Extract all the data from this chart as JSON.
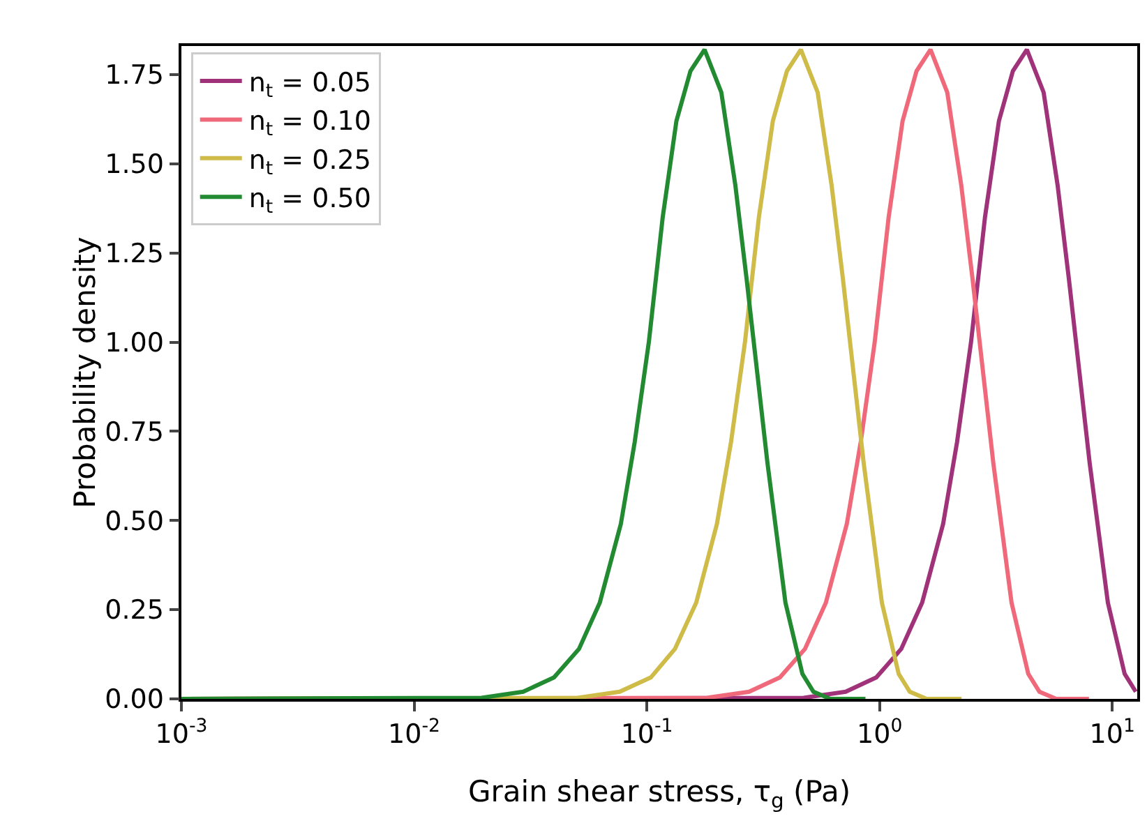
{
  "chart_data": {
    "type": "line",
    "xlabel": "Grain shear stress, τ$_{g}$ (Pa)",
    "ylabel": "Probability density",
    "log": "x",
    "grid": false,
    "legend": "top left",
    "line_style": "solid",
    "marker": "none",
    "xlim": [
      0.001,
      12.8
    ],
    "ylim": [
      0,
      1.83
    ],
    "xticks": [
      {
        "value": 0.001,
        "label": "10$^{-3}$"
      },
      {
        "value": 0.01,
        "label": "10$^{-2}$"
      },
      {
        "value": 0.1,
        "label": "10$^{-1}$"
      },
      {
        "value": 1,
        "label": "10$^{0}$"
      },
      {
        "value": 10,
        "label": "10$^{1}$"
      }
    ],
    "yticks": [
      {
        "value": 0,
        "label": "0.00"
      },
      {
        "value": 0.25,
        "label": "0.25"
      },
      {
        "value": 0.5,
        "label": "0.50"
      },
      {
        "value": 0.75,
        "label": "0.75"
      },
      {
        "value": 1,
        "label": "1.00"
      },
      {
        "value": 1.25,
        "label": "1.25"
      },
      {
        "value": 1.5,
        "label": "1.50"
      },
      {
        "value": 1.75,
        "label": "1.75"
      }
    ],
    "series": [
      {
        "name": "n$_{t}$ = 0.05",
        "color": "#a03279",
        "x": [
          0.001,
          0.472,
          0.715,
          0.968,
          1.239,
          1.524,
          1.875,
          2.153,
          2.472,
          2.838,
          3.258,
          3.741,
          4.295,
          5.07,
          5.821,
          6.501,
          7.998,
          9.572,
          11.3,
          12.62
        ],
        "values": [
          0,
          0.003,
          0.02,
          0.06,
          0.14,
          0.27,
          0.49,
          0.72,
          1.0,
          1.35,
          1.62,
          1.76,
          1.82,
          1.7,
          1.44,
          1.18,
          0.66,
          0.27,
          0.07,
          0.02
        ]
      },
      {
        "name": "n$_{t}$ = 0.10",
        "color": "#f0697a",
        "x": [
          0.001,
          0.182,
          0.275,
          0.373,
          0.478,
          0.588,
          0.723,
          0.83,
          0.953,
          1.094,
          1.256,
          1.442,
          1.656,
          1.954,
          2.244,
          2.506,
          3.083,
          3.69,
          4.355,
          4.864,
          5.741,
          7.94
        ],
        "values": [
          0,
          0.003,
          0.02,
          0.06,
          0.14,
          0.27,
          0.49,
          0.72,
          1.0,
          1.35,
          1.62,
          1.76,
          1.82,
          1.7,
          1.44,
          1.18,
          0.66,
          0.27,
          0.07,
          0.02,
          0,
          0
        ]
      },
      {
        "name": "n$_{t}$ = 0.25",
        "color": "#cfbb47",
        "x": [
          0.001,
          0.0505,
          0.0764,
          0.104,
          0.132,
          0.163,
          0.2,
          0.23,
          0.264,
          0.303,
          0.348,
          0.4,
          0.459,
          0.542,
          0.622,
          0.695,
          0.855,
          1.023,
          1.208,
          1.349,
          1.592,
          2.25
        ],
        "values": [
          0,
          0.003,
          0.02,
          0.06,
          0.14,
          0.27,
          0.49,
          0.72,
          1.0,
          1.35,
          1.62,
          1.76,
          1.82,
          1.7,
          1.44,
          1.18,
          0.66,
          0.27,
          0.07,
          0.02,
          0,
          0
        ]
      },
      {
        "name": "n$_{t}$ = 0.50",
        "color": "#228b32",
        "x": [
          0.001,
          0.0195,
          0.0294,
          0.0399,
          0.0511,
          0.0628,
          0.0773,
          0.0887,
          0.102,
          0.117,
          0.134,
          0.154,
          0.177,
          0.209,
          0.24,
          0.268,
          0.33,
          0.394,
          0.466,
          0.52,
          0.614,
          0.87
        ],
        "values": [
          0,
          0.003,
          0.02,
          0.06,
          0.14,
          0.27,
          0.49,
          0.72,
          1.0,
          1.35,
          1.62,
          1.76,
          1.82,
          1.7,
          1.44,
          1.18,
          0.66,
          0.27,
          0.07,
          0.02,
          0,
          0
        ]
      }
    ]
  }
}
